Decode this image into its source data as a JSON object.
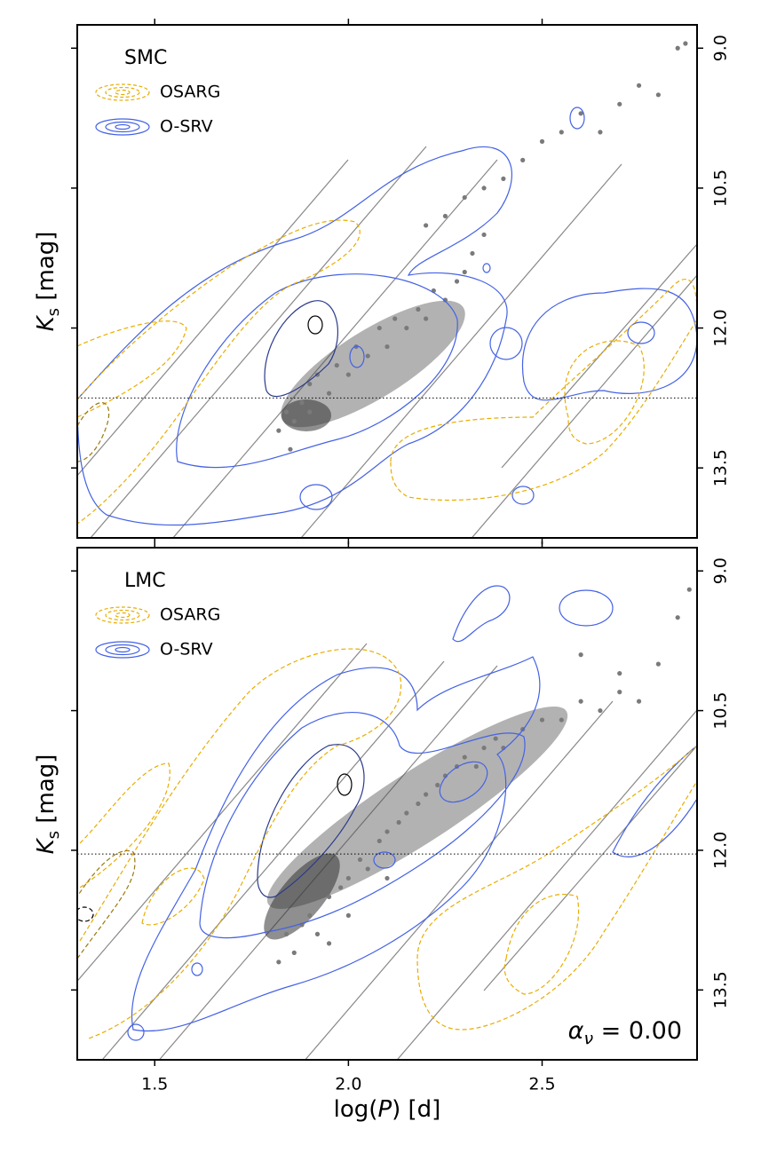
{
  "chart_data": [
    {
      "type": "scatter",
      "title": "SMC",
      "ylabel": [
        "K",
        "s",
        " [mag]"
      ],
      "xlim": [
        1.3,
        2.9
      ],
      "ylim": [
        8.75,
        14.25
      ],
      "y_inverted": true,
      "yticks": [
        {
          "value": 9,
          "label": "9.0"
        },
        {
          "value": 10.5,
          "label": "10.5"
        },
        {
          "value": 12,
          "label": "12.0"
        },
        {
          "value": 13.5,
          "label": "13.5"
        }
      ],
      "x": [
        1.82,
        1.84,
        1.85,
        1.86,
        1.88,
        1.9,
        1.9,
        1.92,
        1.95,
        1.97,
        2.0,
        2.02,
        2.05,
        2.08,
        2.1,
        2.12,
        2.15,
        2.18,
        2.2,
        2.22,
        2.25,
        2.28,
        2.3,
        2.32,
        2.35,
        2.2,
        2.25,
        2.3,
        2.35,
        2.4,
        2.45,
        2.5,
        2.55,
        2.6,
        2.65,
        2.7,
        2.75,
        2.8,
        2.85,
        2.87
      ],
      "y": [
        13.1,
        12.9,
        13.3,
        13.0,
        12.8,
        12.9,
        12.6,
        12.5,
        12.7,
        12.4,
        12.5,
        12.2,
        12.3,
        12.0,
        12.2,
        11.9,
        12.0,
        11.8,
        11.9,
        11.6,
        11.7,
        11.5,
        11.4,
        11.2,
        11.0,
        10.9,
        10.8,
        10.6,
        10.5,
        10.4,
        10.2,
        10.0,
        9.9,
        9.7,
        9.9,
        9.6,
        9.4,
        9.5,
        9.0,
        8.95
      ],
      "color": "#7a7a7a",
      "series": [
        {
          "name": "OSARG",
          "color": "#e8ad00",
          "dashed": true
        },
        {
          "name": "O-SRV",
          "color": "#4462e4",
          "dashed": false
        }
      ],
      "hline": 12.75
    },
    {
      "type": "scatter",
      "title": "LMC",
      "ylabel": [
        "K",
        "s",
        " [mag]"
      ],
      "xlim": [
        1.3,
        2.9
      ],
      "ylim": [
        8.75,
        14.25
      ],
      "y_inverted": true,
      "xticks": [
        1.5,
        {
          "value": 2,
          "label": "2.0"
        },
        2.5
      ],
      "xlabel": [
        "log(",
        "P",
        ") [d]"
      ],
      "yticks": [
        {
          "value": 9,
          "label": "9.0"
        },
        {
          "value": 10.5,
          "label": "10.5"
        },
        {
          "value": 12,
          "label": "12.0"
        },
        {
          "value": 13.5,
          "label": "13.5"
        }
      ],
      "x": [
        1.82,
        1.84,
        1.86,
        1.88,
        1.9,
        1.92,
        1.95,
        1.98,
        2.0,
        2.03,
        2.05,
        2.08,
        2.1,
        2.13,
        2.15,
        2.18,
        2.2,
        2.23,
        2.25,
        2.28,
        2.3,
        2.33,
        2.35,
        2.38,
        2.4,
        2.45,
        2.5,
        2.55,
        2.6,
        2.65,
        2.7,
        2.75,
        2.8,
        2.85,
        2.88,
        2.7,
        2.6,
        2.1,
        2.0,
        1.95
      ],
      "y": [
        13.2,
        12.9,
        13.1,
        12.8,
        12.7,
        12.9,
        12.5,
        12.4,
        12.3,
        12.1,
        12.2,
        11.9,
        11.8,
        11.7,
        11.6,
        11.5,
        11.4,
        11.3,
        11.2,
        11.1,
        11.0,
        11.1,
        10.9,
        10.8,
        10.9,
        10.7,
        10.6,
        10.6,
        10.4,
        10.5,
        10.3,
        10.4,
        10.0,
        9.5,
        9.2,
        10.1,
        9.9,
        12.3,
        12.7,
        13.0
      ],
      "color": "#7a7a7a",
      "series": [
        {
          "name": "OSARG",
          "color": "#e8ad00",
          "dashed": true
        },
        {
          "name": "O-SRV",
          "color": "#4462e4",
          "dashed": false
        }
      ],
      "hline": 12.04,
      "annotation": [
        "α",
        "ν",
        " = 0.00"
      ]
    }
  ]
}
